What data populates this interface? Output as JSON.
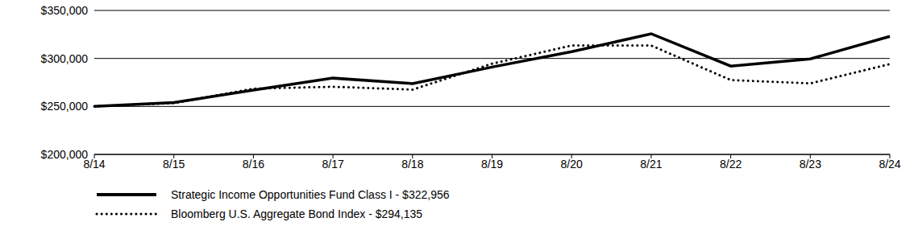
{
  "chart_data": {
    "type": "line",
    "categories": [
      "8/14",
      "8/15",
      "8/16",
      "8/17",
      "8/18",
      "8/19",
      "8/20",
      "8/21",
      "8/22",
      "8/23",
      "8/24"
    ],
    "series": [
      {
        "name": "Strategic Income Opportunities Fund Class I - $322,956",
        "color": "#000000",
        "line_style": "solid",
        "values": [
          250000,
          254000,
          267000,
          279500,
          273800,
          291000,
          307000,
          325700,
          292000,
          299500,
          322956
        ]
      },
      {
        "name": "Bloomberg U.S. Aggregate Bond Index - $294,135",
        "color": "#000000",
        "line_style": "dotted",
        "values": [
          250000,
          253500,
          268500,
          270500,
          267500,
          294500,
          313500,
          313500,
          277500,
          274000,
          294135
        ]
      }
    ],
    "ylim": [
      200000,
      350000
    ],
    "yticks": [
      {
        "value": 200000,
        "label": "$200,000"
      },
      {
        "value": 250000,
        "label": "$250,000"
      },
      {
        "value": 300000,
        "label": "$300,000"
      },
      {
        "value": 350000,
        "label": "$350,000"
      }
    ],
    "grid": true
  }
}
